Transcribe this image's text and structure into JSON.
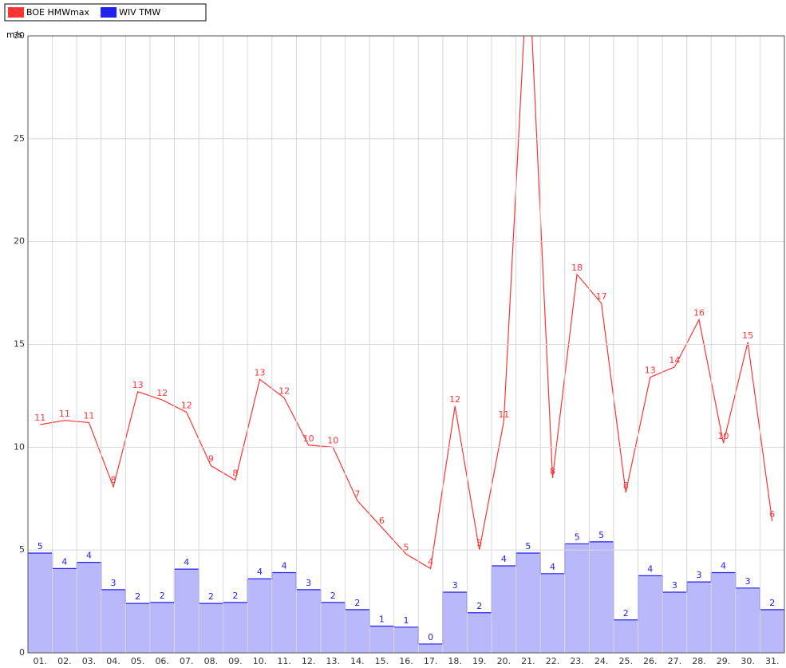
{
  "chart_data": {
    "type": "line_step",
    "y_unit": "m/s",
    "categories": [
      "01.",
      "02.",
      "03.",
      "04.",
      "05.",
      "06.",
      "07.",
      "08.",
      "09.",
      "10.",
      "11.",
      "12.",
      "13.",
      "14.",
      "15.",
      "16.",
      "17.",
      "18.",
      "19.",
      "20.",
      "21.",
      "22.",
      "23.",
      "24.",
      "25.",
      "26.",
      "27.",
      "28.",
      "29.",
      "30.",
      "31."
    ],
    "ylim": [
      0,
      30
    ],
    "yticks": [
      0,
      5,
      10,
      15,
      20,
      25,
      30
    ],
    "grid": true,
    "legend": "top-left",
    "series": [
      {
        "name": "BOE HMWmax",
        "color": "#ff3333",
        "style": "line",
        "values": [
          11.1,
          11.3,
          11.2,
          8.07,
          12.7,
          12.3,
          11.7,
          9.1,
          8.4,
          13.3,
          12.4,
          10.1,
          10.0,
          7.4,
          6.1,
          4.8,
          4.1,
          12.0,
          5.0,
          11.25,
          34,
          8.5,
          18.4,
          17.0,
          7.8,
          13.4,
          13.9,
          16.2,
          10.2,
          15.1,
          6.4
        ],
        "value_labels": [
          "11",
          "11",
          "11",
          "8",
          "13",
          "12",
          "12",
          "9",
          "8",
          "13",
          "12",
          "10",
          "10",
          "7",
          "6",
          "5",
          "4",
          "12",
          "5",
          "11",
          null,
          "8",
          "18",
          "17",
          "8",
          "13",
          "14",
          "16",
          "10",
          "15",
          "6"
        ]
      },
      {
        "name": "WIV TMW",
        "color": "#2222ee",
        "style": "step",
        "values": [
          4.85,
          4.1,
          4.4,
          3.07,
          2.4,
          2.45,
          4.07,
          2.4,
          2.45,
          3.6,
          3.9,
          3.07,
          2.45,
          2.1,
          1.3,
          1.25,
          0.43,
          2.95,
          1.95,
          4.23,
          4.85,
          3.85,
          5.3,
          5.4,
          1.6,
          3.75,
          2.95,
          3.45,
          3.9,
          3.15,
          2.1
        ],
        "value_labels": [
          "5",
          "4",
          "4",
          "3",
          "2",
          "2",
          "4",
          "2",
          "2",
          "4",
          "4",
          "3",
          "2",
          "2",
          "1",
          "1",
          "0",
          "3",
          "2",
          "4",
          "5",
          "4",
          "5",
          "5",
          "2",
          "4",
          "3",
          "3",
          "4",
          "3",
          "2"
        ]
      }
    ]
  }
}
